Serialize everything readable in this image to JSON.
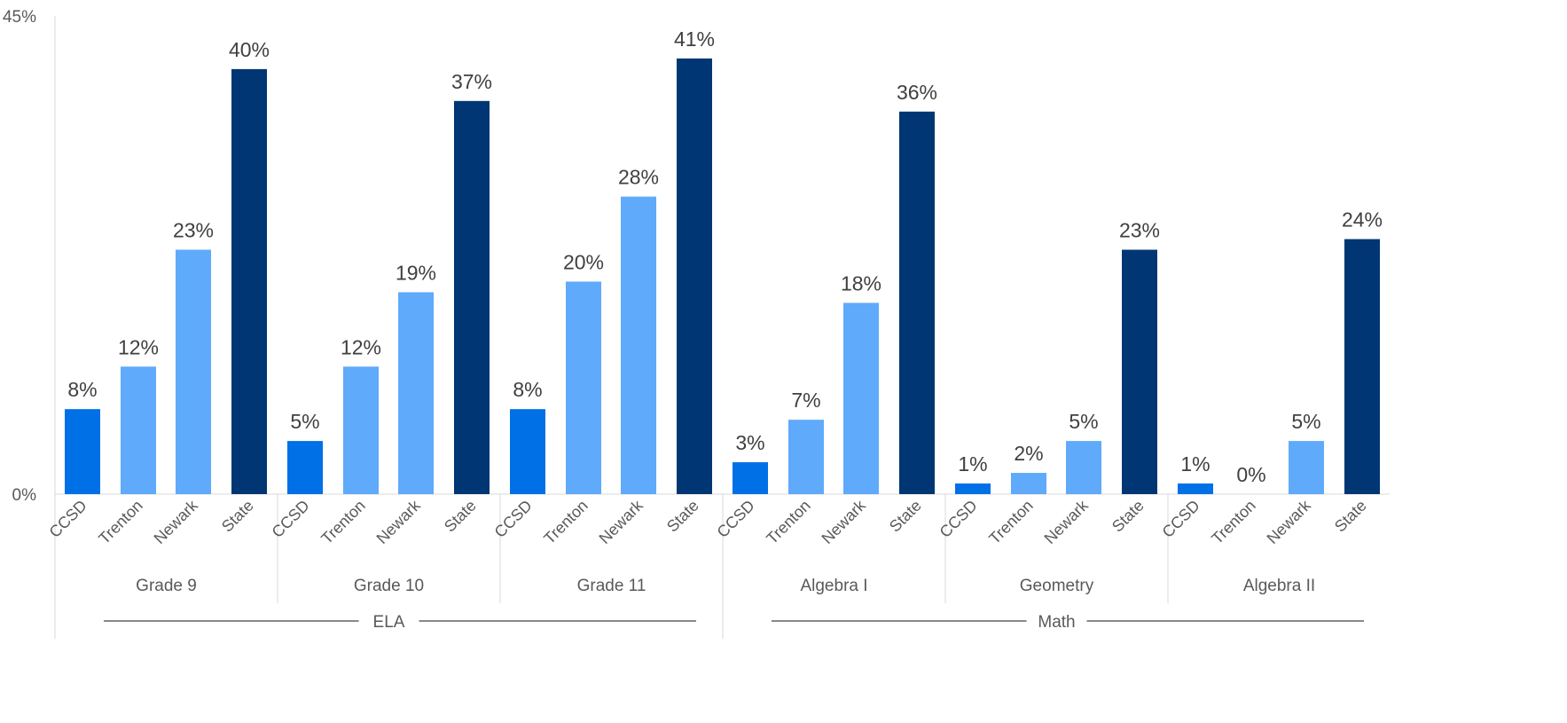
{
  "chart_data": {
    "type": "bar",
    "ylim": [
      0,
      45
    ],
    "yticks": [
      "0%",
      "45%"
    ],
    "series_colors": {
      "CCSD": "#0070E6",
      "Trenton": "#5FAAFB",
      "Newark": "#5FAAFB",
      "State": "#003673"
    },
    "groups": [
      {
        "supergroup": "ELA",
        "name": "Grade 9",
        "bars": [
          {
            "category": "CCSD",
            "value": 8,
            "label": "8%"
          },
          {
            "category": "Trenton",
            "value": 12,
            "label": "12%"
          },
          {
            "category": "Newark",
            "value": 23,
            "label": "23%"
          },
          {
            "category": "State",
            "value": 40,
            "label": "40%"
          }
        ]
      },
      {
        "supergroup": "ELA",
        "name": "Grade 10",
        "bars": [
          {
            "category": "CCSD",
            "value": 5,
            "label": "5%"
          },
          {
            "category": "Trenton",
            "value": 12,
            "label": "12%"
          },
          {
            "category": "Newark",
            "value": 19,
            "label": "19%"
          },
          {
            "category": "State",
            "value": 37,
            "label": "37%"
          }
        ]
      },
      {
        "supergroup": "ELA",
        "name": "Grade 11",
        "bars": [
          {
            "category": "CCSD",
            "value": 8,
            "label": "8%"
          },
          {
            "category": "Trenton",
            "value": 20,
            "label": "20%"
          },
          {
            "category": "Newark",
            "value": 28,
            "label": "28%"
          },
          {
            "category": "State",
            "value": 41,
            "label": "41%"
          }
        ]
      },
      {
        "supergroup": "Math",
        "name": "Algebra I",
        "bars": [
          {
            "category": "CCSD",
            "value": 3,
            "label": "3%"
          },
          {
            "category": "Trenton",
            "value": 7,
            "label": "7%"
          },
          {
            "category": "Newark",
            "value": 18,
            "label": "18%"
          },
          {
            "category": "State",
            "value": 36,
            "label": "36%"
          }
        ]
      },
      {
        "supergroup": "Math",
        "name": "Geometry",
        "bars": [
          {
            "category": "CCSD",
            "value": 1,
            "label": "1%"
          },
          {
            "category": "Trenton",
            "value": 2,
            "label": "2%"
          },
          {
            "category": "Newark",
            "value": 5,
            "label": "5%"
          },
          {
            "category": "State",
            "value": 23,
            "label": "23%"
          }
        ]
      },
      {
        "supergroup": "Math",
        "name": "Algebra II",
        "bars": [
          {
            "category": "CCSD",
            "value": 1,
            "label": "1%"
          },
          {
            "category": "Trenton",
            "value": 0,
            "label": "0%"
          },
          {
            "category": "Newark",
            "value": 5,
            "label": "5%"
          },
          {
            "category": "State",
            "value": 24,
            "label": "24%"
          }
        ]
      }
    ],
    "supergroups": [
      "ELA",
      "Math"
    ]
  }
}
